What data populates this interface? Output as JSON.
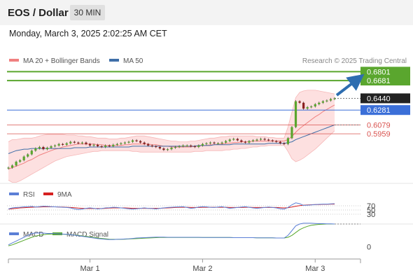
{
  "header": {
    "title": "EOS / Dollar",
    "timeframe": "30 MIN"
  },
  "datetime": "Monday, March 3, 2025 2:02:25 AM CET",
  "copyright": "Research © 2025 Trading Central",
  "colors": {
    "bollinger": "#f08080",
    "ma50": "#3f6fa8",
    "resistance": "#5aa62e",
    "support": "#d9534f",
    "pivot": "#3b6fd8",
    "rsi": "#5b7fd6",
    "rsi_ma": "#d62020",
    "macd": "#5b7fd6",
    "macd_signal": "#58a82e"
  },
  "chart_data": [
    {
      "type": "line",
      "panel": "price",
      "legend": [
        "MA 20 + Bollinger Bands",
        "MA 50"
      ],
      "x_ticks": [
        "Mar 1",
        "Mar 2",
        "Mar 3"
      ],
      "levels": [
        {
          "value": 0.6801,
          "label": "0.6801",
          "kind": "resistance"
        },
        {
          "value": 0.6681,
          "label": "0.6681",
          "kind": "resistance"
        },
        {
          "value": 0.644,
          "label": "0.6440",
          "kind": "last"
        },
        {
          "value": 0.6281,
          "label": "0.6281",
          "kind": "pivot"
        },
        {
          "value": 0.6079,
          "label": "0.6079",
          "kind": "support"
        },
        {
          "value": 0.5959,
          "label": "0.5959",
          "kind": "support"
        }
      ],
      "ylim": [
        0.54,
        0.69
      ],
      "price": [
        0.55,
        0.553,
        0.558,
        0.56,
        0.565,
        0.568,
        0.573,
        0.576,
        0.578,
        0.575,
        0.577,
        0.579,
        0.58,
        0.582,
        0.581,
        0.583,
        0.585,
        0.584,
        0.583,
        0.584,
        0.582,
        0.58,
        0.581,
        0.579,
        0.578,
        0.58,
        0.579,
        0.581,
        0.582,
        0.583,
        0.584,
        0.585,
        0.587,
        0.586,
        0.584,
        0.582,
        0.58,
        0.579,
        0.578,
        0.576,
        0.574,
        0.575,
        0.577,
        0.578,
        0.579,
        0.58,
        0.58,
        0.579,
        0.578,
        0.58,
        0.582,
        0.583,
        0.584,
        0.583,
        0.583,
        0.584,
        0.586,
        0.588,
        0.589,
        0.587,
        0.585,
        0.584,
        0.586,
        0.587,
        0.588,
        0.589,
        0.588,
        0.587,
        0.586,
        0.585,
        0.583,
        0.582,
        0.59,
        0.605,
        0.64,
        0.638,
        0.63,
        0.632,
        0.633,
        0.636,
        0.638,
        0.64,
        0.641,
        0.643,
        0.644
      ],
      "ma20": [
        0.548,
        0.55,
        0.552,
        0.554,
        0.556,
        0.559,
        0.561,
        0.564,
        0.567,
        0.569,
        0.571,
        0.573,
        0.575,
        0.576,
        0.578,
        0.579,
        0.58,
        0.581,
        0.582,
        0.582,
        0.582,
        0.582,
        0.582,
        0.581,
        0.581,
        0.58,
        0.58,
        0.58,
        0.58,
        0.58,
        0.581,
        0.581,
        0.582,
        0.582,
        0.582,
        0.582,
        0.582,
        0.581,
        0.581,
        0.58,
        0.579,
        0.579,
        0.578,
        0.578,
        0.578,
        0.578,
        0.578,
        0.578,
        0.579,
        0.579,
        0.58,
        0.58,
        0.581,
        0.581,
        0.582,
        0.582,
        0.583,
        0.583,
        0.584,
        0.584,
        0.585,
        0.585,
        0.585,
        0.586,
        0.586,
        0.586,
        0.586,
        0.586,
        0.586,
        0.586,
        0.586,
        0.586,
        0.588,
        0.592,
        0.598,
        0.603,
        0.607,
        0.611,
        0.615,
        0.619,
        0.622,
        0.626,
        0.629,
        0.632,
        0.635
      ],
      "upper": [
        0.585,
        0.588,
        0.588,
        0.589,
        0.59,
        0.59,
        0.59,
        0.591,
        0.593,
        0.594,
        0.595,
        0.595,
        0.595,
        0.595,
        0.595,
        0.594,
        0.594,
        0.594,
        0.593,
        0.593,
        0.592,
        0.592,
        0.591,
        0.59,
        0.59,
        0.59,
        0.589,
        0.589,
        0.589,
        0.59,
        0.59,
        0.591,
        0.592,
        0.593,
        0.593,
        0.593,
        0.592,
        0.591,
        0.59,
        0.589,
        0.588,
        0.587,
        0.586,
        0.586,
        0.585,
        0.585,
        0.585,
        0.586,
        0.586,
        0.587,
        0.588,
        0.589,
        0.59,
        0.59,
        0.591,
        0.592,
        0.592,
        0.593,
        0.593,
        0.593,
        0.593,
        0.593,
        0.593,
        0.593,
        0.592,
        0.592,
        0.592,
        0.591,
        0.591,
        0.59,
        0.59,
        0.59,
        0.605,
        0.625,
        0.645,
        0.652,
        0.654,
        0.655,
        0.655,
        0.655,
        0.654,
        0.653,
        0.652,
        0.651,
        0.65
      ],
      "lower": [
        0.533,
        0.53,
        0.53,
        0.532,
        0.535,
        0.538,
        0.541,
        0.544,
        0.547,
        0.55,
        0.553,
        0.556,
        0.559,
        0.561,
        0.563,
        0.565,
        0.566,
        0.567,
        0.568,
        0.569,
        0.57,
        0.571,
        0.572,
        0.572,
        0.573,
        0.573,
        0.573,
        0.573,
        0.573,
        0.573,
        0.573,
        0.573,
        0.572,
        0.572,
        0.571,
        0.571,
        0.571,
        0.571,
        0.571,
        0.571,
        0.571,
        0.571,
        0.571,
        0.571,
        0.571,
        0.571,
        0.571,
        0.571,
        0.572,
        0.572,
        0.572,
        0.573,
        0.573,
        0.573,
        0.573,
        0.573,
        0.574,
        0.574,
        0.575,
        0.575,
        0.576,
        0.576,
        0.577,
        0.578,
        0.578,
        0.579,
        0.579,
        0.58,
        0.58,
        0.58,
        0.58,
        0.58,
        0.572,
        0.562,
        0.558,
        0.56,
        0.563,
        0.567,
        0.571,
        0.575,
        0.58,
        0.585,
        0.59,
        0.595,
        0.6
      ],
      "ma50": [
        0.569,
        0.571,
        0.573,
        0.574,
        0.575,
        0.575,
        0.576,
        0.576,
        0.576,
        0.576,
        0.576,
        0.576,
        0.576,
        0.576,
        0.576,
        0.576,
        0.576,
        0.577,
        0.577,
        0.577,
        0.577,
        0.578,
        0.578,
        0.578,
        0.578,
        0.578,
        0.578,
        0.578,
        0.578,
        0.578,
        0.578,
        0.578,
        0.579,
        0.579,
        0.579,
        0.579,
        0.579,
        0.579,
        0.579,
        0.579,
        0.579,
        0.579,
        0.579,
        0.579,
        0.579,
        0.579,
        0.579,
        0.579,
        0.579,
        0.58,
        0.58,
        0.58,
        0.58,
        0.581,
        0.581,
        0.581,
        0.581,
        0.581,
        0.582,
        0.582,
        0.582,
        0.582,
        0.582,
        0.582,
        0.582,
        0.582,
        0.582,
        0.583,
        0.583,
        0.583,
        0.583,
        0.583,
        0.584,
        0.585,
        0.588,
        0.59,
        0.592,
        0.594,
        0.596,
        0.598,
        0.6,
        0.602,
        0.604,
        0.606,
        0.608
      ]
    },
    {
      "type": "line",
      "panel": "rsi",
      "legend": [
        "RSI",
        "9MA"
      ],
      "levels": [
        {
          "value": 70,
          "label": "70"
        },
        {
          "value": 50,
          "label": "50"
        },
        {
          "value": 30,
          "label": "30"
        }
      ],
      "ylim": [
        0,
        100
      ],
      "rsi": [
        55,
        60,
        62,
        63,
        65,
        66,
        67,
        64,
        66,
        68,
        67,
        66,
        65,
        64,
        63,
        62,
        60,
        55,
        52,
        54,
        58,
        60,
        58,
        55,
        57,
        60,
        61,
        63,
        62,
        60,
        58,
        56,
        54,
        56,
        58,
        60,
        58,
        57,
        55,
        58,
        60,
        62,
        63,
        64,
        65,
        66,
        62,
        58,
        60,
        64,
        66,
        65,
        63,
        62,
        64,
        66,
        62,
        58,
        60,
        62,
        64,
        66,
        63,
        60,
        58,
        60,
        62,
        64,
        62,
        60,
        56,
        54,
        62,
        75,
        84,
        80,
        72,
        73,
        74,
        76,
        77,
        78,
        78,
        79,
        80
      ],
      "rsi_ma": [
        54,
        56,
        58,
        60,
        61,
        62,
        63,
        64,
        64,
        65,
        65,
        65,
        65,
        64,
        64,
        63,
        62,
        61,
        59,
        58,
        57,
        57,
        57,
        57,
        57,
        58,
        59,
        60,
        60,
        60,
        60,
        59,
        58,
        58,
        58,
        58,
        58,
        58,
        58,
        58,
        59,
        60,
        61,
        62,
        63,
        63,
        63,
        62,
        62,
        62,
        63,
        63,
        63,
        63,
        63,
        63,
        63,
        62,
        62,
        62,
        62,
        63,
        63,
        62,
        62,
        62,
        62,
        62,
        62,
        62,
        61,
        60,
        61,
        64,
        68,
        71,
        73,
        74,
        75,
        76,
        76,
        77,
        77,
        78,
        78
      ]
    },
    {
      "type": "line",
      "panel": "macd",
      "legend": [
        "MACD",
        "MACD Signal"
      ],
      "levels": [
        {
          "value": 0,
          "label": "0"
        }
      ],
      "ylim": [
        -0.012,
        0.012
      ],
      "macd": [
        0.001,
        0.002,
        0.003,
        0.004,
        0.005,
        0.006,
        0.007,
        0.0072,
        0.0073,
        0.0072,
        0.007,
        0.007,
        0.0069,
        0.0068,
        0.0067,
        0.0066,
        0.0064,
        0.0061,
        0.0058,
        0.0055,
        0.0052,
        0.0049,
        0.0046,
        0.0043,
        0.0041,
        0.0039,
        0.0038,
        0.0038,
        0.0039,
        0.004,
        0.0041,
        0.0042,
        0.0044,
        0.0046,
        0.0047,
        0.0048,
        0.0049,
        0.005,
        0.0051,
        0.0051,
        0.0051,
        0.005,
        0.005,
        0.005,
        0.005,
        0.005,
        0.005,
        0.005,
        0.005,
        0.005,
        0.0049,
        0.0049,
        0.0049,
        0.0049,
        0.0049,
        0.0049,
        0.0049,
        0.0049,
        0.0048,
        0.0048,
        0.0048,
        0.0048,
        0.0048,
        0.0048,
        0.0047,
        0.0047,
        0.0047,
        0.0047,
        0.0047,
        0.0046,
        0.0046,
        0.0046,
        0.006,
        0.0085,
        0.011,
        0.012,
        0.0124,
        0.0124,
        0.0124,
        0.0123,
        0.0122,
        0.0122,
        0.0121,
        0.0121,
        0.012
      ],
      "signal": [
        0.0005,
        0.001,
        0.0018,
        0.0026,
        0.0034,
        0.0042,
        0.005,
        0.0056,
        0.0061,
        0.0064,
        0.0066,
        0.0067,
        0.0067,
        0.0067,
        0.0066,
        0.0065,
        0.0064,
        0.0062,
        0.006,
        0.0057,
        0.0055,
        0.0052,
        0.0049,
        0.0046,
        0.0044,
        0.0042,
        0.004,
        0.0039,
        0.0039,
        0.0039,
        0.004,
        0.0041,
        0.0042,
        0.0043,
        0.0044,
        0.0045,
        0.0046,
        0.0047,
        0.0048,
        0.0049,
        0.0049,
        0.0049,
        0.0049,
        0.0049,
        0.0049,
        0.0049,
        0.0049,
        0.0049,
        0.0049,
        0.0049,
        0.0049,
        0.0049,
        0.0049,
        0.0049,
        0.0049,
        0.0049,
        0.0049,
        0.0049,
        0.0048,
        0.0048,
        0.0048,
        0.0048,
        0.0048,
        0.0048,
        0.0047,
        0.0047,
        0.0047,
        0.0047,
        0.0047,
        0.0046,
        0.0046,
        0.0046,
        0.005,
        0.006,
        0.0075,
        0.009,
        0.01,
        0.0108,
        0.0113,
        0.0116,
        0.0118,
        0.0119,
        0.012,
        0.012,
        0.012
      ]
    }
  ]
}
